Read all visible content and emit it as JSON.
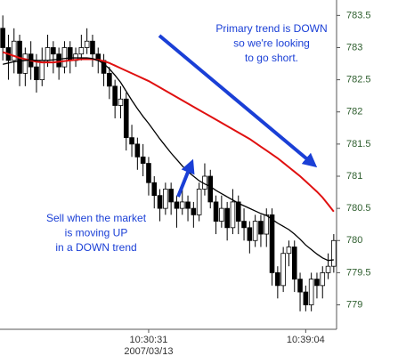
{
  "chart_data": {
    "type": "candlestick",
    "categories": [
      null,
      null,
      null,
      null,
      null,
      null,
      null,
      null,
      null,
      null,
      null,
      null,
      null,
      null,
      null,
      null,
      null,
      null,
      null,
      null,
      null,
      null,
      null,
      null,
      null,
      null,
      "10:30:31",
      null,
      null,
      null,
      null,
      null,
      null,
      null,
      null,
      null,
      null,
      null,
      null,
      null,
      null,
      null,
      null,
      null,
      null,
      null,
      null,
      null,
      null,
      null,
      null,
      null,
      null,
      null,
      "10:39:04",
      null,
      null,
      null,
      null,
      null
    ],
    "x_sublabel": "2007/03/13",
    "open": [
      783.3,
      783.0,
      782.8,
      783.1,
      782.6,
      782.9,
      782.7,
      782.5,
      782.8,
      783.0,
      782.9,
      782.7,
      783.0,
      782.8,
      782.9,
      783.0,
      783.1,
      782.9,
      782.8,
      782.6,
      782.4,
      782.1,
      782.2,
      781.6,
      781.5,
      781.3,
      781.2,
      780.9,
      780.7,
      780.5,
      780.8,
      780.6,
      780.5,
      780.6,
      780.5,
      780.4,
      780.8,
      781.0,
      780.6,
      780.3,
      780.5,
      780.2,
      780.6,
      780.3,
      780.2,
      780.0,
      780.3,
      780.1,
      780.4,
      779.5,
      779.3,
      779.8,
      779.9,
      779.4,
      779.2,
      779.0,
      779.4,
      779.3,
      779.5,
      779.6
    ],
    "high": [
      783.5,
      783.2,
      783.3,
      783.2,
      783.0,
      783.1,
      782.9,
      783.0,
      783.2,
      783.1,
      783.0,
      783.1,
      783.1,
      783.0,
      783.2,
      783.3,
      783.2,
      783.0,
      782.9,
      782.7,
      782.5,
      782.4,
      782.3,
      781.8,
      781.6,
      781.5,
      781.3,
      781.0,
      780.8,
      780.9,
      780.9,
      780.7,
      780.8,
      780.7,
      780.6,
      780.9,
      781.2,
      781.1,
      780.7,
      780.7,
      780.6,
      780.8,
      780.7,
      780.5,
      780.3,
      780.4,
      780.4,
      780.5,
      780.5,
      779.6,
      779.9,
      780.0,
      780.0,
      779.5,
      779.3,
      779.5,
      779.5,
      779.6,
      779.8,
      780.1
    ],
    "low": [
      782.8,
      782.5,
      782.6,
      782.4,
      782.4,
      782.5,
      782.3,
      782.4,
      782.7,
      782.6,
      782.5,
      782.6,
      782.6,
      782.7,
      782.8,
      782.9,
      782.7,
      782.6,
      782.4,
      782.2,
      781.9,
      781.9,
      781.4,
      781.3,
      781.1,
      781.0,
      780.7,
      780.5,
      780.3,
      780.4,
      780.4,
      780.2,
      780.4,
      780.3,
      780.2,
      780.3,
      780.7,
      780.5,
      780.1,
      780.2,
      780.0,
      780.1,
      780.1,
      780.0,
      779.8,
      779.9,
      779.9,
      779.9,
      779.3,
      779.1,
      779.2,
      779.6,
      779.2,
      778.9,
      778.9,
      778.9,
      779.1,
      779.1,
      779.4,
      779.5
    ],
    "close": [
      783.0,
      782.8,
      783.1,
      782.6,
      782.9,
      782.7,
      782.5,
      782.8,
      783.0,
      782.9,
      782.7,
      783.0,
      782.8,
      782.9,
      783.0,
      783.1,
      782.9,
      782.8,
      782.6,
      782.4,
      782.1,
      782.2,
      781.6,
      781.5,
      781.3,
      781.2,
      780.9,
      780.7,
      780.5,
      780.8,
      780.6,
      780.5,
      780.6,
      780.5,
      780.4,
      780.8,
      781.0,
      780.6,
      780.3,
      780.5,
      780.2,
      780.6,
      780.3,
      780.2,
      780.0,
      780.3,
      780.1,
      780.4,
      779.5,
      779.3,
      779.8,
      779.9,
      779.4,
      779.2,
      779.0,
      779.4,
      779.3,
      779.5,
      779.6,
      780.0
    ],
    "up_color": "#ffffff",
    "down_color": "#000000",
    "series": [
      {
        "color": "#e01010",
        "values": [
          782.93,
          782.9,
          782.87,
          782.84,
          782.82,
          782.8,
          782.78,
          782.77,
          782.77,
          782.77,
          782.78,
          782.79,
          782.8,
          782.81,
          782.82,
          782.82,
          782.82,
          782.81,
          782.79,
          782.76,
          782.72,
          782.68,
          782.64,
          782.6,
          782.56,
          782.52,
          782.48,
          782.43,
          782.38,
          782.33,
          782.28,
          782.23,
          782.18,
          782.13,
          782.08,
          782.03,
          781.98,
          781.93,
          781.88,
          781.83,
          781.78,
          781.73,
          781.68,
          781.63,
          781.58,
          781.52,
          781.46,
          781.4,
          781.34,
          781.28,
          781.21,
          781.14,
          781.07,
          781.0,
          780.92,
          780.84,
          780.76,
          780.67,
          780.56,
          780.45
        ]
      },
      {
        "color": "#000000",
        "values": [
          782.74,
          782.76,
          782.78,
          782.79,
          782.8,
          782.81,
          782.8,
          782.8,
          782.8,
          782.81,
          782.82,
          782.83,
          782.84,
          782.84,
          782.84,
          782.84,
          782.83,
          782.8,
          782.75,
          782.67,
          782.57,
          782.46,
          782.32,
          782.18,
          782.05,
          781.93,
          781.82,
          781.7,
          781.58,
          781.47,
          781.36,
          781.26,
          781.16,
          781.07,
          781.0,
          780.93,
          780.88,
          780.84,
          780.78,
          780.73,
          780.68,
          780.63,
          780.58,
          780.54,
          780.5,
          780.46,
          780.42,
          780.39,
          780.33,
          780.27,
          780.22,
          780.17,
          780.1,
          780.02,
          779.93,
          779.86,
          779.79,
          779.73,
          779.69,
          779.7
        ]
      }
    ],
    "ylim": [
      778.62,
      783.74
    ],
    "yticks": [
      779,
      779.5,
      780,
      780.5,
      781,
      781.5,
      782,
      782.5,
      783,
      783.5
    ],
    "annotations": [
      {
        "color": "#1a3fd6",
        "lines": [
          "Primary trend is DOWN",
          "so we're looking",
          "to go short."
        ]
      },
      {
        "color": "#1a3fd6",
        "lines": [
          "Sell when the market",
          "is moving UP",
          "in a DOWN trend"
        ]
      }
    ]
  }
}
